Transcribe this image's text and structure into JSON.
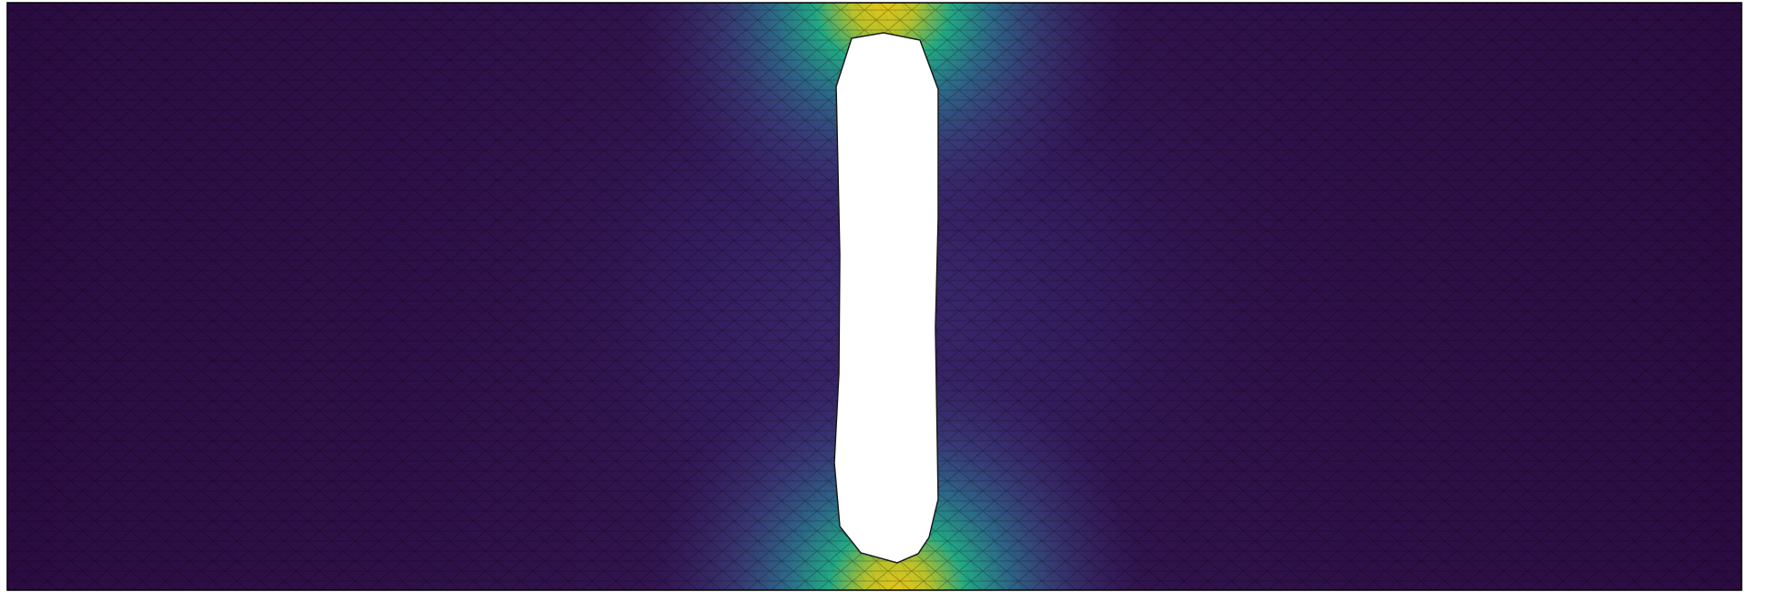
{
  "figure": {
    "kind": "finite-element field plot",
    "colormap": "viridis",
    "mesh": "triangular",
    "mesh_edge_color": "#000000",
    "boundary_color": "#000000",
    "hole_fill": "#ffffff",
    "colors": {
      "low": "#2e0f46",
      "low_mid": "#3b2f73",
      "mid": "#2c6e8e",
      "mid_high": "#1f9e89",
      "high": "#b5c22c",
      "max": "#d8c71f"
    }
  }
}
